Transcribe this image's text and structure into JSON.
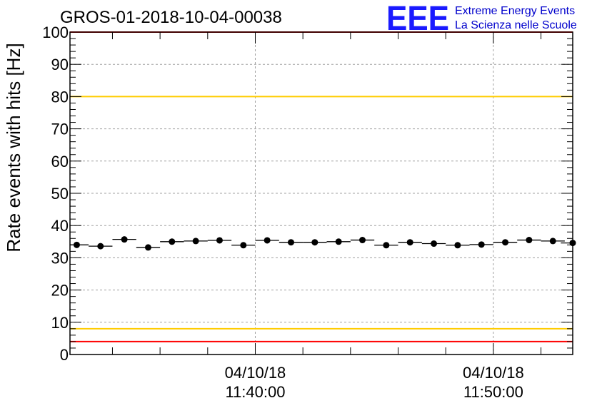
{
  "chart_data": {
    "type": "scatter",
    "title": "GROS-01-2018-10-04-00038",
    "xlabel": "",
    "ylabel": "Rate events with hits [Hz]",
    "ylim": [
      0,
      100
    ],
    "yticks": [
      0,
      10,
      20,
      30,
      40,
      50,
      60,
      70,
      80,
      90,
      100
    ],
    "xlim": [
      "2018-10-04 11:32:13",
      "2018-10-04 11:53:20"
    ],
    "xtick_labels": [
      {
        "time": "2018-10-04 11:40:00",
        "date": "04/10/18",
        "clock": "11:40:00"
      },
      {
        "time": "2018-10-04 11:50:00",
        "date": "04/10/18",
        "clock": "11:50:00"
      }
    ],
    "grid": true,
    "x_bin_seconds": 60,
    "x": [
      "2018-10-04 11:32:30",
      "2018-10-04 11:33:30",
      "2018-10-04 11:34:30",
      "2018-10-04 11:35:30",
      "2018-10-04 11:36:30",
      "2018-10-04 11:37:30",
      "2018-10-04 11:38:30",
      "2018-10-04 11:39:30",
      "2018-10-04 11:40:30",
      "2018-10-04 11:41:30",
      "2018-10-04 11:42:30",
      "2018-10-04 11:43:30",
      "2018-10-04 11:44:30",
      "2018-10-04 11:45:30",
      "2018-10-04 11:46:30",
      "2018-10-04 11:47:30",
      "2018-10-04 11:48:30",
      "2018-10-04 11:49:30",
      "2018-10-04 11:50:30",
      "2018-10-04 11:51:30",
      "2018-10-04 11:52:30",
      "2018-10-04 11:53:20"
    ],
    "values": [
      34.0,
      33.6,
      35.7,
      33.2,
      35.0,
      35.2,
      35.4,
      33.9,
      35.4,
      34.8,
      34.8,
      35.0,
      35.5,
      33.9,
      34.8,
      34.4,
      33.9,
      34.1,
      34.8,
      35.5,
      35.2,
      34.6
    ],
    "reference_lines": [
      {
        "value": 100,
        "color": "#ff0000"
      },
      {
        "value": 80,
        "color": "#ffcc00"
      },
      {
        "value": 8,
        "color": "#ffcc00"
      },
      {
        "value": 4,
        "color": "#ff0000"
      }
    ]
  },
  "logo": {
    "mark": "EEE",
    "line1": "Extreme Energy Events",
    "line2": "La Scienza nelle Scuole",
    "mark_color": "#1a1aff",
    "text_color": "#0000cc"
  }
}
